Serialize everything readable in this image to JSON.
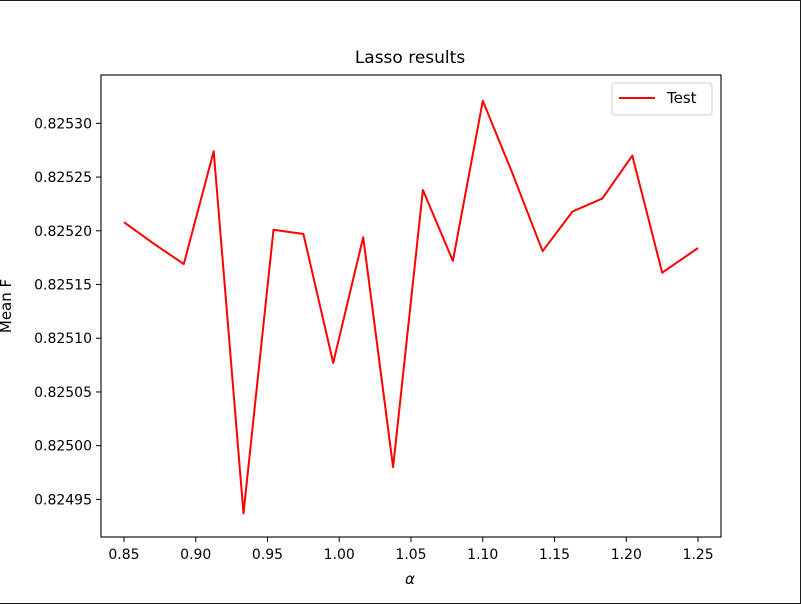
{
  "chart_data": {
    "type": "line",
    "title": "Lasso results",
    "xlabel": "α",
    "ylabel": "Mean F",
    "xlim": [
      0.834,
      1.266
    ],
    "ylim": [
      0.824915,
      0.825345
    ],
    "x_ticks": [
      0.85,
      0.9,
      0.95,
      1.0,
      1.05,
      1.1,
      1.15,
      1.2,
      1.25
    ],
    "x_tick_labels": [
      "0.85",
      "0.90",
      "0.95",
      "1.00",
      "1.05",
      "1.10",
      "1.15",
      "1.20",
      "1.25"
    ],
    "y_ticks": [
      0.82495,
      0.825,
      0.82505,
      0.8251,
      0.82515,
      0.8252,
      0.82525,
      0.8253
    ],
    "y_tick_labels": [
      "0.82495",
      "0.82500",
      "0.82505",
      "0.82510",
      "0.82515",
      "0.82520",
      "0.82525",
      "0.82530"
    ],
    "grid": false,
    "legend_position": "top-right",
    "series": [
      {
        "name": "Test",
        "color": "#ff0000",
        "x": [
          0.85,
          0.8708,
          0.8917,
          0.9125,
          0.9333,
          0.9542,
          0.975,
          0.9958,
          1.0167,
          1.0375,
          1.0583,
          1.0792,
          1.1,
          1.1208,
          1.1417,
          1.1625,
          1.1833,
          1.2042,
          1.225,
          1.25
        ],
        "y": [
          0.825208,
          0.825188,
          0.825169,
          0.825274,
          0.824937,
          0.825201,
          0.825197,
          0.825077,
          0.825194,
          0.82498,
          0.825238,
          0.825172,
          0.825321,
          0.825253,
          0.825181,
          0.825218,
          0.82523,
          0.82527,
          0.825161,
          0.825184
        ]
      }
    ]
  }
}
